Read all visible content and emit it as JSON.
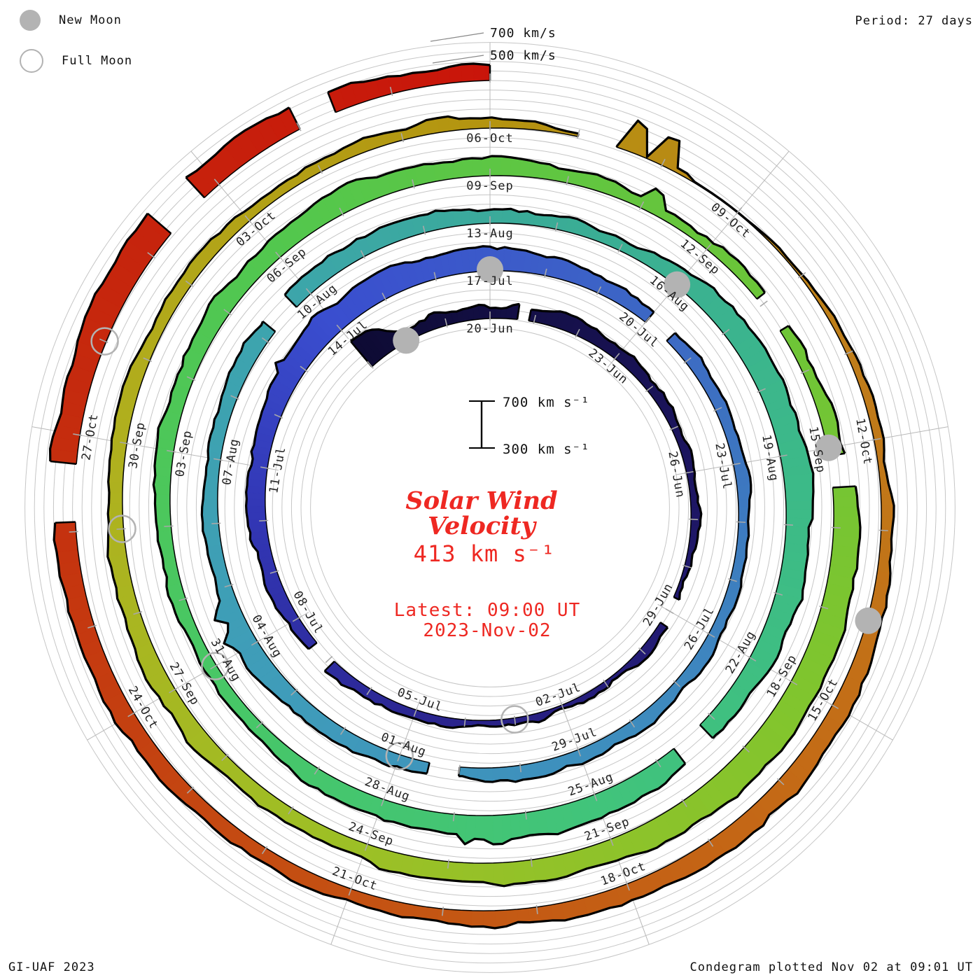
{
  "legend": {
    "new_moon": "New Moon",
    "full_moon": "Full Moon"
  },
  "header": {
    "period": "Period: 27 days"
  },
  "footer": {
    "left": "GI-UAF 2023",
    "right": "Condegram plotted Nov 02 at 09:01 UT"
  },
  "center": {
    "title_line1": "Solar Wind",
    "title_line2": "Velocity",
    "current_value": "413 km s⁻¹",
    "latest_line1": "Latest: 09:00 UT",
    "latest_line2": "2023-Nov-02"
  },
  "scale_bar": {
    "top": "700 km s⁻¹",
    "bottom": "300 km s⁻¹"
  },
  "outer_scale": {
    "top_label": "700 km/s",
    "bottom_label": "500 km/s"
  },
  "chart_data": {
    "type": "area",
    "variant": "spiral-condegram",
    "title": "Solar Wind Velocity",
    "units": "km/s",
    "period_days": 27,
    "start_date": "2023-Jun-17",
    "end_date": "2023-Nov-02",
    "latest_value_kms": 413,
    "latest_time": "09:00 UT 2023-Nov-02",
    "radial_scale_kms": [
      300,
      700
    ],
    "grid": {
      "circle_spacing_kms": 100,
      "ray_spacing_days": 3
    },
    "rays": [
      {
        "bearing_deg": 0,
        "labels": [
          "20-Jun",
          "17-Jul",
          "13-Aug",
          "09-Sep",
          "06-Oct"
        ]
      },
      {
        "bearing_deg": 40,
        "labels": [
          "23-Jun",
          "20-Jul",
          "16-Aug",
          "12-Sep",
          "09-Oct"
        ]
      },
      {
        "bearing_deg": 80,
        "labels": [
          "26-Jun",
          "23-Jul",
          "19-Aug",
          "15-Sep",
          "12-Oct"
        ]
      },
      {
        "bearing_deg": 120,
        "labels": [
          "29-Jun",
          "26-Jul",
          "22-Aug",
          "18-Sep",
          "15-Oct"
        ]
      },
      {
        "bearing_deg": 160,
        "labels": [
          "02-Jul",
          "29-Jul",
          "25-Aug",
          "21-Sep",
          "18-Oct"
        ]
      },
      {
        "bearing_deg": 200,
        "labels": [
          "05-Jul",
          "01-Aug",
          "28-Aug",
          "24-Sep",
          "21-Oct"
        ]
      },
      {
        "bearing_deg": 240,
        "labels": [
          "08-Jul",
          "04-Aug",
          "31-Aug",
          "27-Sep",
          "24-Oct"
        ]
      },
      {
        "bearing_deg": 280,
        "labels": [
          "11-Jul",
          "07-Aug",
          "03-Sep",
          "30-Sep",
          "27-Oct"
        ]
      },
      {
        "bearing_deg": 320,
        "labels": [
          "14-Jul",
          "10-Aug",
          "06-Sep",
          "03-Oct"
        ]
      }
    ],
    "moons": {
      "new": [
        {
          "date": "2023-Jun-18",
          "t": -2
        },
        {
          "date": "2023-Jul-17",
          "t": 27
        },
        {
          "date": "2023-Aug-16",
          "t": 57
        },
        {
          "date": "2023-Sep-15",
          "t": 87
        },
        {
          "date": "2023-Oct-14",
          "t": 116
        }
      ],
      "full": [
        {
          "date": "2023-Jul-03",
          "t": 13
        },
        {
          "date": "2023-Aug-01",
          "t": 42
        },
        {
          "date": "2023-Aug-31",
          "t": 72
        },
        {
          "date": "2023-Sep-29",
          "t": 101
        },
        {
          "date": "2023-Oct-28",
          "t": 130
        }
      ]
    },
    "data_gaps_days": [
      [
        0.62,
        0.88
      ],
      [
        8.7,
        9.3
      ],
      [
        16.9,
        17.4
      ],
      [
        30.0,
        30.5
      ],
      [
        41.0,
        41.5
      ],
      [
        50.2,
        50.7
      ],
      [
        64.2,
        64.7
      ],
      [
        84.9,
        85.4
      ],
      [
        87.1,
        87.5
      ],
      [
        109.0,
        109.45
      ],
      [
        128.1,
        128.7
      ],
      [
        131.3,
        131.8
      ],
      [
        133.0,
        133.4
      ]
    ],
    "velocity_anchors": [
      [
        -3,
        640
      ],
      [
        -2.6,
        600
      ],
      [
        -2,
        440
      ],
      [
        0,
        430
      ],
      [
        2,
        460
      ],
      [
        4,
        420
      ],
      [
        6,
        400
      ],
      [
        8,
        370
      ],
      [
        9,
        350
      ],
      [
        10,
        380
      ],
      [
        12,
        360
      ],
      [
        13,
        350
      ],
      [
        14,
        380
      ],
      [
        16,
        420
      ],
      [
        17,
        400
      ],
      [
        18,
        440
      ],
      [
        20,
        470
      ],
      [
        22,
        520
      ],
      [
        23,
        560
      ],
      [
        24,
        580
      ],
      [
        25,
        560
      ],
      [
        26,
        540
      ],
      [
        27,
        560
      ],
      [
        28,
        520
      ],
      [
        29,
        480
      ],
      [
        30,
        440
      ],
      [
        31,
        420
      ],
      [
        32,
        440
      ],
      [
        34,
        430
      ],
      [
        36,
        420
      ],
      [
        38,
        440
      ],
      [
        40,
        430
      ],
      [
        41,
        410
      ],
      [
        42,
        420
      ],
      [
        43,
        450
      ],
      [
        44,
        480
      ],
      [
        45,
        520
      ],
      [
        46,
        480
      ],
      [
        47,
        440
      ],
      [
        48,
        460
      ],
      [
        50,
        480
      ],
      [
        52,
        500
      ],
      [
        54,
        470
      ],
      [
        56,
        440
      ],
      [
        57,
        480
      ],
      [
        58,
        540
      ],
      [
        59,
        580
      ],
      [
        60,
        600
      ],
      [
        61,
        580
      ],
      [
        62,
        560
      ],
      [
        63,
        520
      ],
      [
        64,
        480
      ],
      [
        65,
        520
      ],
      [
        66,
        540
      ],
      [
        67,
        560
      ],
      [
        68,
        520
      ],
      [
        70,
        480
      ],
      [
        71,
        440
      ],
      [
        72,
        420
      ],
      [
        74,
        450
      ],
      [
        76,
        500
      ],
      [
        78,
        520
      ],
      [
        79,
        540
      ],
      [
        80,
        520
      ],
      [
        81,
        480
      ],
      [
        82,
        460
      ],
      [
        83,
        440
      ],
      [
        84,
        400
      ],
      [
        85,
        380
      ],
      [
        86,
        420
      ],
      [
        87,
        480
      ],
      [
        88,
        560
      ],
      [
        89,
        600
      ],
      [
        90,
        620
      ],
      [
        91,
        600
      ],
      [
        92,
        560
      ],
      [
        93,
        540
      ],
      [
        94,
        520
      ],
      [
        95,
        500
      ],
      [
        96,
        480
      ],
      [
        97,
        460
      ],
      [
        98,
        480
      ],
      [
        99,
        500
      ],
      [
        100,
        480
      ],
      [
        101,
        460
      ],
      [
        102,
        440
      ],
      [
        103,
        450
      ],
      [
        104,
        440
      ],
      [
        105,
        430
      ],
      [
        106,
        440
      ],
      [
        107,
        420
      ],
      [
        108,
        430
      ],
      [
        109,
        330
      ],
      [
        110,
        320
      ],
      [
        111,
        320
      ],
      [
        112,
        330
      ],
      [
        113,
        340
      ],
      [
        114,
        380
      ],
      [
        115,
        400
      ],
      [
        116,
        460
      ],
      [
        117,
        500
      ],
      [
        118,
        520
      ],
      [
        119,
        500
      ],
      [
        120,
        480
      ],
      [
        121,
        460
      ],
      [
        122,
        440
      ],
      [
        123,
        430
      ],
      [
        124,
        440
      ],
      [
        125,
        460
      ],
      [
        126,
        480
      ],
      [
        127,
        500
      ],
      [
        128,
        520
      ],
      [
        129,
        560
      ],
      [
        130,
        600
      ],
      [
        131,
        620
      ],
      [
        132,
        600
      ],
      [
        133,
        540
      ],
      [
        134,
        490
      ],
      [
        135,
        450
      ]
    ],
    "spikes": [
      [
        -2.7,
        650
      ],
      [
        22.8,
        610
      ],
      [
        45.2,
        630
      ],
      [
        45.6,
        610
      ],
      [
        67.4,
        650
      ],
      [
        67.8,
        620
      ],
      [
        83.1,
        580
      ],
      [
        109.6,
        660
      ],
      [
        110.0,
        650
      ],
      [
        118.5,
        560
      ],
      [
        133.6,
        560
      ]
    ],
    "color_stops": [
      [
        -3,
        "#0e0b34"
      ],
      [
        6,
        "#1c1560"
      ],
      [
        13,
        "#282084"
      ],
      [
        20,
        "#3236b4"
      ],
      [
        24,
        "#3a4ecf"
      ],
      [
        28,
        "#3c5ec8"
      ],
      [
        33,
        "#3d76c0"
      ],
      [
        38,
        "#3e8cbe"
      ],
      [
        44,
        "#3f9cba"
      ],
      [
        50,
        "#3da4ae"
      ],
      [
        55,
        "#3aac96"
      ],
      [
        60,
        "#3cb989"
      ],
      [
        66,
        "#41c47b"
      ],
      [
        72,
        "#48c765"
      ],
      [
        78,
        "#52c74e"
      ],
      [
        84,
        "#68c53a"
      ],
      [
        90,
        "#80c52e"
      ],
      [
        96,
        "#9cc026"
      ],
      [
        102,
        "#b0b01e"
      ],
      [
        108,
        "#b49410"
      ],
      [
        113,
        "#bf7d1a"
      ],
      [
        118,
        "#c46a16"
      ],
      [
        124,
        "#c44c12"
      ],
      [
        129,
        "#c52c0e"
      ],
      [
        135,
        "#c9150a"
      ]
    ],
    "style_colors": {
      "grid": "#c6c6c6",
      "ray": "#b8b8b8",
      "tick": "#a8a8a8",
      "moon_gray": "#b3b3b3",
      "edge": "#000000",
      "label_text": "#222222",
      "annotation_red": "#ee2822"
    }
  }
}
